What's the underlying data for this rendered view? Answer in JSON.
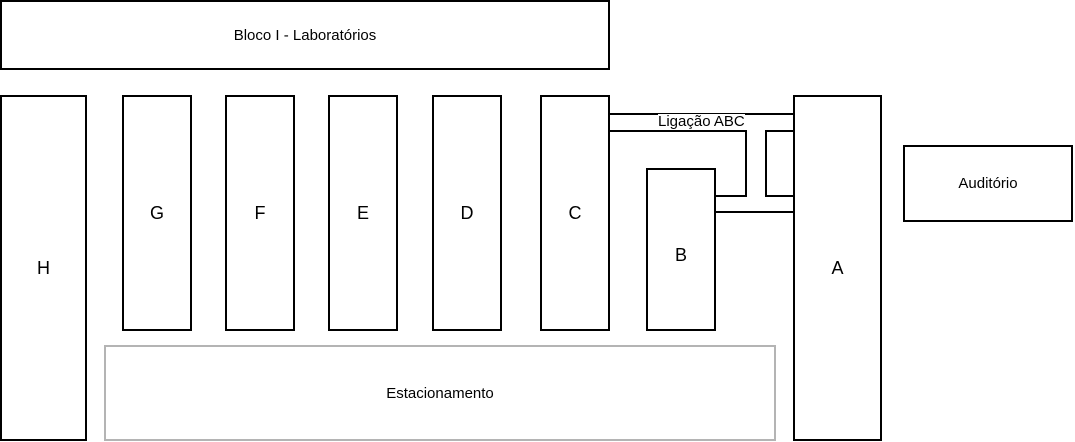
{
  "diagram": {
    "title_block": "Bloco I - Laboratórios",
    "blocks": {
      "h": "H",
      "g": "G",
      "f": "F",
      "e": "E",
      "d": "D",
      "c": "C",
      "b": "B",
      "a": "A"
    },
    "auditorio": "Auditório",
    "estacionamento": "Estacionamento",
    "ligacao": "Ligação ABC"
  },
  "colors": {
    "stroke": "#000000",
    "parking_stroke": "#b4b4b4",
    "background": "#ffffff"
  }
}
